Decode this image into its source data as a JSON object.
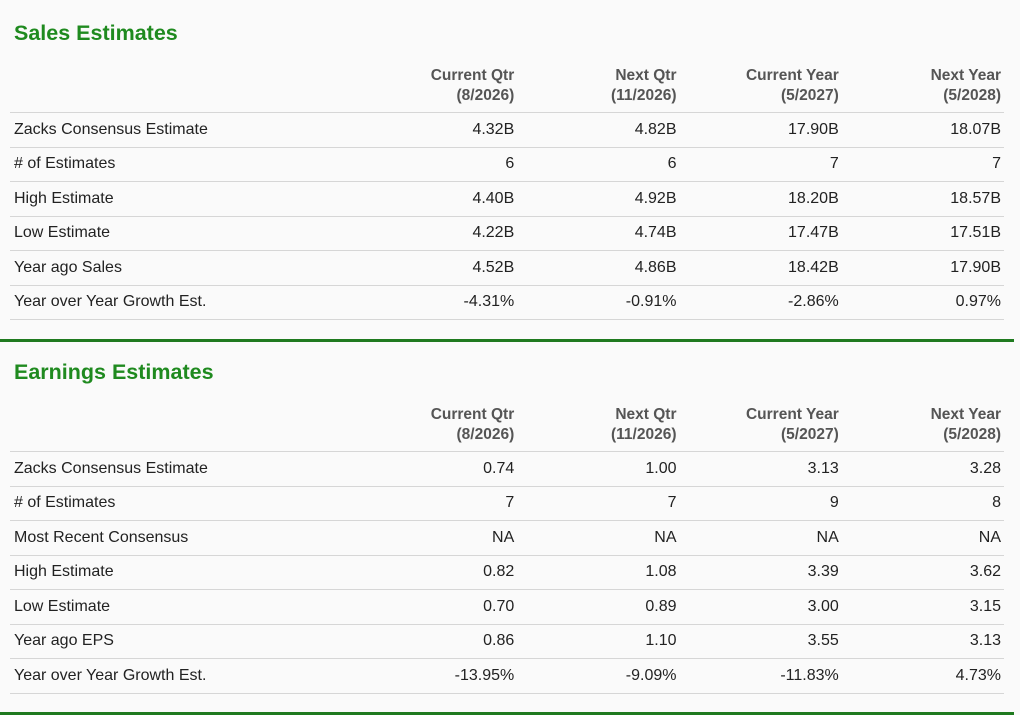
{
  "sales": {
    "title": "Sales Estimates",
    "columns": [
      {
        "line1": "Current Qtr",
        "line2": "(8/2026)"
      },
      {
        "line1": "Next Qtr",
        "line2": "(11/2026)"
      },
      {
        "line1": "Current Year",
        "line2": "(5/2027)"
      },
      {
        "line1": "Next Year",
        "line2": "(5/2028)"
      }
    ],
    "rows": [
      {
        "label": "Zacks Consensus Estimate",
        "values": [
          "4.32B",
          "4.82B",
          "17.90B",
          "18.07B"
        ]
      },
      {
        "label": "# of Estimates",
        "values": [
          "6",
          "6",
          "7",
          "7"
        ]
      },
      {
        "label": "High Estimate",
        "values": [
          "4.40B",
          "4.92B",
          "18.20B",
          "18.57B"
        ]
      },
      {
        "label": "Low Estimate",
        "values": [
          "4.22B",
          "4.74B",
          "17.47B",
          "17.51B"
        ]
      },
      {
        "label": "Year ago Sales",
        "values": [
          "4.52B",
          "4.86B",
          "18.42B",
          "17.90B"
        ]
      },
      {
        "label": "Year over Year Growth Est.",
        "values": [
          "-4.31%",
          "-0.91%",
          "-2.86%",
          "0.97%"
        ]
      }
    ]
  },
  "earnings": {
    "title": "Earnings Estimates",
    "columns": [
      {
        "line1": "Current Qtr",
        "line2": "(8/2026)"
      },
      {
        "line1": "Next Qtr",
        "line2": "(11/2026)"
      },
      {
        "line1": "Current Year",
        "line2": "(5/2027)"
      },
      {
        "line1": "Next Year",
        "line2": "(5/2028)"
      }
    ],
    "rows": [
      {
        "label": "Zacks Consensus Estimate",
        "values": [
          "0.74",
          "1.00",
          "3.13",
          "3.28"
        ]
      },
      {
        "label": "# of Estimates",
        "values": [
          "7",
          "7",
          "9",
          "8"
        ]
      },
      {
        "label": "Most Recent Consensus",
        "values": [
          "NA",
          "NA",
          "NA",
          "NA"
        ]
      },
      {
        "label": "High Estimate",
        "values": [
          "0.82",
          "1.08",
          "3.39",
          "3.62"
        ]
      },
      {
        "label": "Low Estimate",
        "values": [
          "0.70",
          "0.89",
          "3.00",
          "3.15"
        ]
      },
      {
        "label": "Year ago EPS",
        "values": [
          "0.86",
          "1.10",
          "3.55",
          "3.13"
        ]
      },
      {
        "label": "Year over Year Growth Est.",
        "values": [
          "-13.95%",
          "-9.09%",
          "-11.83%",
          "4.73%"
        ]
      }
    ]
  },
  "colors": {
    "heading_green": "#1f8a1f",
    "divider_green": "#1f7a1f",
    "background": "#fafafa",
    "row_border": "#d6d6d6"
  }
}
